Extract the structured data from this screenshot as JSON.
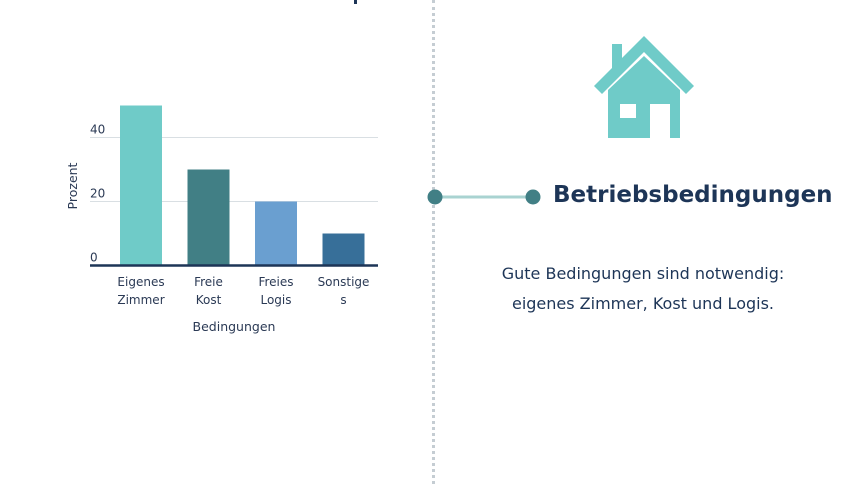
{
  "chart_data": {
    "type": "bar",
    "categories": [
      [
        "Eigenes",
        "Zimmer"
      ],
      [
        "Freie",
        "Kost"
      ],
      [
        "Freies",
        "Logis"
      ],
      [
        "Sonstige",
        "s"
      ]
    ],
    "values": [
      50,
      30,
      20,
      10
    ],
    "colors": [
      "#6fcbc8",
      "#417f85",
      "#6a9fd0",
      "#376f99"
    ],
    "xlabel": "Bedingungen",
    "ylabel": "Prozent",
    "ylim": [
      0,
      55
    ],
    "yticks": [
      0,
      20,
      40
    ],
    "grid": true
  },
  "section": {
    "title": "Betriebsbedingungen",
    "text_line1": "Gute Bedingungen sind notwendig:",
    "text_line2": "eigenes Zimmer, Kost und Logis.",
    "icon": "house-icon",
    "accent_color": "#6fcbc8",
    "dot_color": "#417f85"
  }
}
